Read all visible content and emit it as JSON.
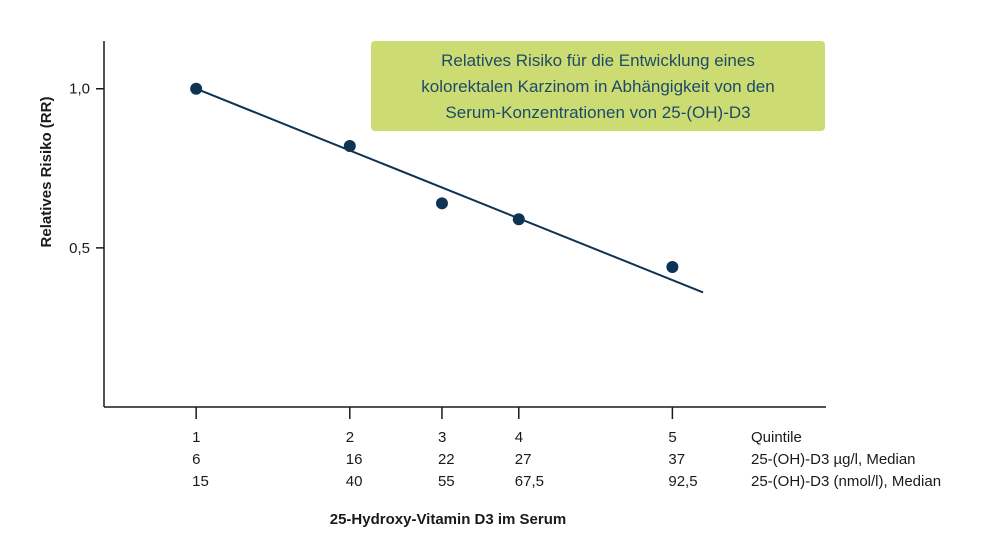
{
  "chart_data": {
    "type": "scatter",
    "title_lines": [
      "Relatives Risiko für die Entwicklung eines",
      "kolorektalen Karzinom in Abhängigkeit von den",
      "Serum-Konzentrationen von 25-(OH)-D3"
    ],
    "ylabel": "Relatives Risiko (RR)",
    "xlabel": "25-Hydroxy-Vitamin D3 im Serum",
    "y_ticks": [
      {
        "value": 1.0,
        "label": "1,0"
      },
      {
        "value": 0.5,
        "label": "0,5"
      }
    ],
    "x_positions": [
      1,
      2,
      3,
      4,
      5
    ],
    "x_rows": [
      {
        "label": "Quintile",
        "values": [
          "1",
          "2",
          "3",
          "4",
          "5"
        ]
      },
      {
        "label": "25-(OH)-D3 µg/l, Median",
        "values": [
          "6",
          "16",
          "22",
          "27",
          "37"
        ]
      },
      {
        "label": "25-(OH)-D3 (nmol/l), Median",
        "values": [
          "15",
          "40",
          "55",
          "67,5",
          "92,5"
        ]
      }
    ],
    "x_values_ugl": [
      6,
      16,
      22,
      27,
      37
    ],
    "series": [
      {
        "x": [
          6,
          16,
          22,
          27,
          37
        ],
        "y": [
          1.0,
          0.82,
          0.64,
          0.59,
          0.44
        ]
      }
    ],
    "trendline": {
      "x": [
        6,
        39
      ],
      "y": [
        1.0,
        0.36
      ]
    },
    "xlim": [
      0,
      47
    ],
    "ylim": [
      0.0,
      1.15
    ],
    "grid": false,
    "colors": {
      "marker": "#0f3352",
      "line": "#0f3352",
      "title_box": "#cddc72",
      "title_text": "#1d4a6b",
      "axis": "#1a1a1a"
    }
  }
}
